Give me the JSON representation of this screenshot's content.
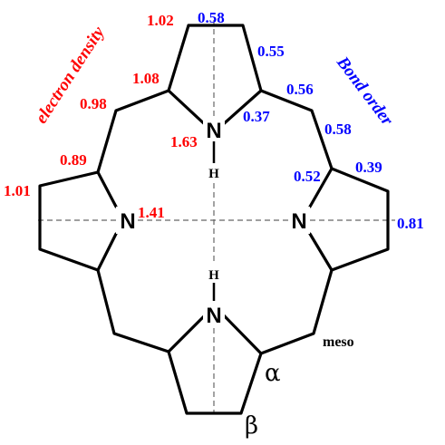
{
  "colors": {
    "electron_density": "#ff0000",
    "bond_order": "#0000ff",
    "bond": "#000000",
    "axis": "#666666"
  },
  "legend": {
    "electron_density": "electron density",
    "bond_order": "Bond order"
  },
  "atoms": {
    "n_top": "N",
    "n_left": "N",
    "n_right": "N",
    "n_bottom": "N",
    "h_top": "H",
    "h_bottom": "H"
  },
  "positions": {
    "meso": "meso",
    "alpha": "α",
    "beta": "β"
  },
  "electron_density_values": {
    "c_beta_top": "1.02",
    "c_alpha_top": "1.08",
    "c_meso_top": "0.98",
    "n_h_top": "1.63",
    "c_alpha_left": "0.89",
    "c_beta_left": "1.01",
    "n_left": "1.41"
  },
  "bond_order_values": {
    "cb_cb_top": "0.58",
    "ca_cb_top": "0.55",
    "ca_cmeso_top": "0.56",
    "n_ca_top": "0.37",
    "cmeso_ca_right": "0.58",
    "n_ca_right": "0.52",
    "ca_cb_right": "0.39",
    "cb_cb_right": "0.81"
  }
}
